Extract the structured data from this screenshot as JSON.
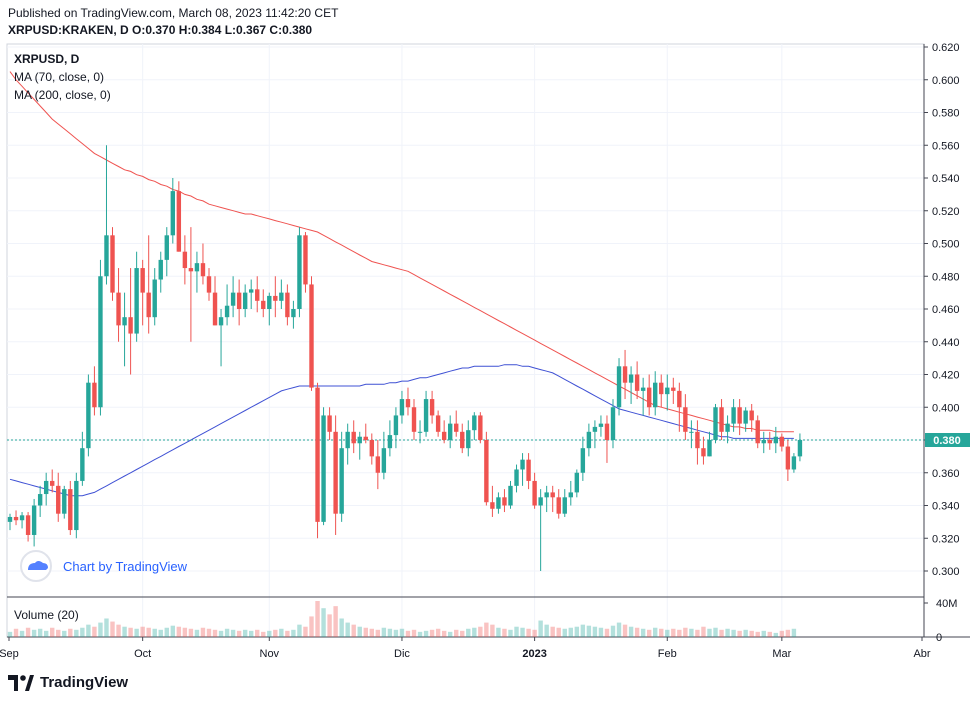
{
  "header": {
    "published": "Published on TradingView.com, March 08, 2023 11:42:20 CET",
    "ohlc": "XRPUSD:KRAKEN, D O:0.370 H:0.384 L:0.367 C:0.380"
  },
  "legend": {
    "symbol": "XRPUSD, D",
    "ma70": "MA (70, close, 0)",
    "ma200": "MA (200, close, 0)"
  },
  "watermark": "Chart by TradingView",
  "volume_label": "Volume (20)",
  "brand": "TradingView",
  "colors": {
    "up": "#26a69a",
    "down": "#ef5350",
    "ma70": "#3f51d4",
    "ma200": "#ef5350",
    "last": "#26a69a"
  },
  "icons": [
    "tradingview-logo-icon",
    "tradingview-cloud-icon"
  ],
  "chart_data": {
    "type": "candlestick",
    "price_axis": {
      "ticks": [
        "0.620",
        "0.600",
        "0.580",
        "0.560",
        "0.540",
        "0.520",
        "0.500",
        "0.480",
        "0.460",
        "0.440",
        "0.420",
        "0.400",
        "0.380",
        "0.360",
        "0.340",
        "0.320",
        "0.300"
      ],
      "range": [
        0.29,
        0.622
      ]
    },
    "volume_axis": {
      "ticks": [
        "40M",
        "0"
      ]
    },
    "time_axis": {
      "labels": [
        "Sep",
        "Oct",
        "Nov",
        "Dic",
        "2023",
        "Feb",
        "Mar",
        "Abr"
      ]
    },
    "last_price": "0.380",
    "candles": [
      [
        0.33,
        0.335,
        0.325,
        0.333
      ],
      [
        0.333,
        0.337,
        0.328,
        0.331
      ],
      [
        0.331,
        0.336,
        0.326,
        0.334
      ],
      [
        0.334,
        0.336,
        0.318,
        0.322
      ],
      [
        0.322,
        0.344,
        0.315,
        0.34
      ],
      [
        0.34,
        0.352,
        0.333,
        0.347
      ],
      [
        0.347,
        0.36,
        0.34,
        0.355
      ],
      [
        0.355,
        0.362,
        0.348,
        0.352
      ],
      [
        0.352,
        0.36,
        0.33,
        0.335
      ],
      [
        0.335,
        0.352,
        0.332,
        0.35
      ],
      [
        0.35,
        0.355,
        0.322,
        0.325
      ],
      [
        0.325,
        0.36,
        0.32,
        0.355
      ],
      [
        0.355,
        0.385,
        0.352,
        0.375
      ],
      [
        0.375,
        0.42,
        0.37,
        0.415
      ],
      [
        0.415,
        0.425,
        0.395,
        0.4
      ],
      [
        0.4,
        0.49,
        0.395,
        0.48
      ],
      [
        0.48,
        0.56,
        0.475,
        0.505
      ],
      [
        0.505,
        0.51,
        0.465,
        0.47
      ],
      [
        0.47,
        0.485,
        0.44,
        0.45
      ],
      [
        0.45,
        0.47,
        0.425,
        0.455
      ],
      [
        0.455,
        0.485,
        0.42,
        0.445
      ],
      [
        0.445,
        0.495,
        0.44,
        0.485
      ],
      [
        0.485,
        0.49,
        0.45,
        0.47
      ],
      [
        0.47,
        0.505,
        0.445,
        0.455
      ],
      [
        0.455,
        0.485,
        0.45,
        0.478
      ],
      [
        0.478,
        0.495,
        0.47,
        0.49
      ],
      [
        0.49,
        0.51,
        0.48,
        0.505
      ],
      [
        0.505,
        0.54,
        0.5,
        0.532
      ],
      [
        0.532,
        0.538,
        0.495,
        0.495
      ],
      [
        0.495,
        0.505,
        0.475,
        0.485
      ],
      [
        0.485,
        0.51,
        0.44,
        0.483
      ],
      [
        0.483,
        0.495,
        0.47,
        0.488
      ],
      [
        0.488,
        0.5,
        0.475,
        0.48
      ],
      [
        0.48,
        0.485,
        0.465,
        0.47
      ],
      [
        0.47,
        0.48,
        0.45,
        0.45
      ],
      [
        0.45,
        0.46,
        0.425,
        0.455
      ],
      [
        0.455,
        0.475,
        0.45,
        0.462
      ],
      [
        0.462,
        0.48,
        0.455,
        0.47
      ],
      [
        0.47,
        0.478,
        0.45,
        0.46
      ],
      [
        0.46,
        0.475,
        0.455,
        0.47
      ],
      [
        0.47,
        0.478,
        0.46,
        0.472
      ],
      [
        0.472,
        0.48,
        0.458,
        0.465
      ],
      [
        0.465,
        0.472,
        0.455,
        0.46
      ],
      [
        0.46,
        0.47,
        0.45,
        0.468
      ],
      [
        0.468,
        0.48,
        0.455,
        0.465
      ],
      [
        0.465,
        0.478,
        0.46,
        0.47
      ],
      [
        0.47,
        0.475,
        0.45,
        0.455
      ],
      [
        0.455,
        0.465,
        0.448,
        0.46
      ],
      [
        0.46,
        0.51,
        0.455,
        0.505
      ],
      [
        0.505,
        0.507,
        0.47,
        0.475
      ],
      [
        0.475,
        0.48,
        0.41,
        0.412
      ],
      [
        0.412,
        0.415,
        0.32,
        0.33
      ],
      [
        0.33,
        0.4,
        0.328,
        0.395
      ],
      [
        0.395,
        0.4,
        0.38,
        0.385
      ],
      [
        0.385,
        0.395,
        0.322,
        0.335
      ],
      [
        0.335,
        0.385,
        0.33,
        0.375
      ],
      [
        0.375,
        0.39,
        0.365,
        0.385
      ],
      [
        0.385,
        0.392,
        0.372,
        0.378
      ],
      [
        0.378,
        0.385,
        0.368,
        0.382
      ],
      [
        0.382,
        0.39,
        0.378,
        0.38
      ],
      [
        0.38,
        0.384,
        0.365,
        0.37
      ],
      [
        0.37,
        0.38,
        0.35,
        0.36
      ],
      [
        0.36,
        0.385,
        0.356,
        0.375
      ],
      [
        0.375,
        0.392,
        0.37,
        0.383
      ],
      [
        0.383,
        0.4,
        0.375,
        0.395
      ],
      [
        0.395,
        0.41,
        0.39,
        0.405
      ],
      [
        0.405,
        0.412,
        0.395,
        0.4
      ],
      [
        0.4,
        0.405,
        0.38,
        0.385
      ],
      [
        0.385,
        0.392,
        0.378,
        0.385
      ],
      [
        0.385,
        0.41,
        0.382,
        0.405
      ],
      [
        0.405,
        0.41,
        0.39,
        0.395
      ],
      [
        0.395,
        0.398,
        0.382,
        0.385
      ],
      [
        0.385,
        0.392,
        0.378,
        0.38
      ],
      [
        0.38,
        0.395,
        0.375,
        0.39
      ],
      [
        0.39,
        0.398,
        0.382,
        0.385
      ],
      [
        0.385,
        0.39,
        0.372,
        0.375
      ],
      [
        0.375,
        0.392,
        0.37,
        0.386
      ],
      [
        0.386,
        0.397,
        0.38,
        0.395
      ],
      [
        0.395,
        0.397,
        0.378,
        0.38
      ],
      [
        0.38,
        0.385,
        0.34,
        0.342
      ],
      [
        0.342,
        0.352,
        0.333,
        0.338
      ],
      [
        0.338,
        0.348,
        0.335,
        0.345
      ],
      [
        0.345,
        0.35,
        0.336,
        0.34
      ],
      [
        0.34,
        0.355,
        0.338,
        0.352
      ],
      [
        0.352,
        0.365,
        0.348,
        0.362
      ],
      [
        0.362,
        0.372,
        0.352,
        0.368
      ],
      [
        0.368,
        0.372,
        0.35,
        0.355
      ],
      [
        0.355,
        0.36,
        0.338,
        0.34
      ],
      [
        0.34,
        0.35,
        0.3,
        0.345
      ],
      [
        0.345,
        0.352,
        0.336,
        0.348
      ],
      [
        0.348,
        0.352,
        0.336,
        0.345
      ],
      [
        0.345,
        0.35,
        0.332,
        0.335
      ],
      [
        0.335,
        0.35,
        0.333,
        0.345
      ],
      [
        0.345,
        0.355,
        0.34,
        0.348
      ],
      [
        0.348,
        0.362,
        0.345,
        0.36
      ],
      [
        0.36,
        0.382,
        0.355,
        0.375
      ],
      [
        0.375,
        0.39,
        0.37,
        0.385
      ],
      [
        0.385,
        0.392,
        0.375,
        0.388
      ],
      [
        0.388,
        0.395,
        0.382,
        0.39
      ],
      [
        0.39,
        0.395,
        0.366,
        0.38
      ],
      [
        0.38,
        0.405,
        0.375,
        0.4
      ],
      [
        0.4,
        0.43,
        0.395,
        0.425
      ],
      [
        0.425,
        0.435,
        0.405,
        0.415
      ],
      [
        0.415,
        0.425,
        0.402,
        0.42
      ],
      [
        0.42,
        0.428,
        0.405,
        0.41
      ],
      [
        0.41,
        0.418,
        0.395,
        0.412
      ],
      [
        0.412,
        0.42,
        0.395,
        0.4
      ],
      [
        0.4,
        0.422,
        0.395,
        0.415
      ],
      [
        0.415,
        0.42,
        0.4,
        0.408
      ],
      [
        0.408,
        0.42,
        0.398,
        0.412
      ],
      [
        0.412,
        0.418,
        0.402,
        0.41
      ],
      [
        0.41,
        0.415,
        0.385,
        0.4
      ],
      [
        0.4,
        0.408,
        0.38,
        0.385
      ],
      [
        0.385,
        0.392,
        0.375,
        0.385
      ],
      [
        0.385,
        0.392,
        0.365,
        0.375
      ],
      [
        0.375,
        0.382,
        0.365,
        0.37
      ],
      [
        0.37,
        0.385,
        0.37,
        0.38
      ],
      [
        0.38,
        0.402,
        0.378,
        0.4
      ],
      [
        0.4,
        0.405,
        0.38,
        0.385
      ],
      [
        0.385,
        0.395,
        0.378,
        0.39
      ],
      [
        0.39,
        0.405,
        0.385,
        0.4
      ],
      [
        0.4,
        0.405,
        0.383,
        0.39
      ],
      [
        0.39,
        0.4,
        0.385,
        0.398
      ],
      [
        0.398,
        0.402,
        0.385,
        0.392
      ],
      [
        0.392,
        0.395,
        0.375,
        0.378
      ],
      [
        0.378,
        0.385,
        0.372,
        0.38
      ],
      [
        0.38,
        0.385,
        0.374,
        0.378
      ],
      [
        0.378,
        0.388,
        0.372,
        0.382
      ],
      [
        0.382,
        0.384,
        0.373,
        0.376
      ],
      [
        0.376,
        0.38,
        0.355,
        0.362
      ],
      [
        0.362,
        0.372,
        0.36,
        0.37
      ],
      [
        0.37,
        0.384,
        0.367,
        0.38
      ]
    ],
    "ma70": [
      0.356,
      0.355,
      0.354,
      0.353,
      0.352,
      0.351,
      0.35,
      0.349,
      0.348,
      0.347,
      0.346,
      0.346,
      0.346,
      0.347,
      0.348,
      0.35,
      0.352,
      0.354,
      0.356,
      0.358,
      0.36,
      0.362,
      0.364,
      0.366,
      0.368,
      0.37,
      0.372,
      0.374,
      0.376,
      0.378,
      0.38,
      0.382,
      0.384,
      0.386,
      0.388,
      0.39,
      0.392,
      0.394,
      0.396,
      0.398,
      0.4,
      0.402,
      0.404,
      0.406,
      0.408,
      0.41,
      0.411,
      0.412,
      0.413,
      0.413,
      0.413,
      0.413,
      0.413,
      0.413,
      0.413,
      0.413,
      0.413,
      0.413,
      0.413,
      0.414,
      0.414,
      0.414,
      0.414,
      0.415,
      0.415,
      0.416,
      0.416,
      0.417,
      0.418,
      0.418,
      0.419,
      0.42,
      0.421,
      0.422,
      0.423,
      0.424,
      0.424,
      0.425,
      0.425,
      0.425,
      0.425,
      0.425,
      0.426,
      0.426,
      0.426,
      0.425,
      0.425,
      0.424,
      0.423,
      0.422,
      0.421,
      0.419,
      0.417,
      0.415,
      0.413,
      0.411,
      0.409,
      0.407,
      0.405,
      0.403,
      0.401,
      0.399,
      0.398,
      0.397,
      0.396,
      0.395,
      0.394,
      0.393,
      0.392,
      0.391,
      0.39,
      0.389,
      0.388,
      0.387,
      0.386,
      0.385,
      0.384,
      0.383,
      0.382,
      0.382,
      0.381,
      0.381,
      0.381,
      0.381,
      0.381,
      0.381,
      0.381,
      0.381,
      0.381,
      0.381,
      0.381
    ],
    "ma200": [
      0.605,
      0.6,
      0.596,
      0.592,
      0.588,
      0.584,
      0.58,
      0.576,
      0.573,
      0.57,
      0.567,
      0.564,
      0.561,
      0.558,
      0.555,
      0.553,
      0.551,
      0.549,
      0.547,
      0.545,
      0.544,
      0.542,
      0.541,
      0.539,
      0.538,
      0.536,
      0.535,
      0.533,
      0.532,
      0.53,
      0.529,
      0.527,
      0.526,
      0.524,
      0.523,
      0.522,
      0.521,
      0.52,
      0.519,
      0.518,
      0.518,
      0.517,
      0.516,
      0.515,
      0.514,
      0.513,
      0.512,
      0.511,
      0.51,
      0.509,
      0.508,
      0.507,
      0.505,
      0.503,
      0.501,
      0.499,
      0.497,
      0.495,
      0.493,
      0.491,
      0.489,
      0.488,
      0.487,
      0.486,
      0.485,
      0.484,
      0.483,
      0.481,
      0.479,
      0.477,
      0.475,
      0.473,
      0.471,
      0.469,
      0.467,
      0.465,
      0.463,
      0.461,
      0.459,
      0.457,
      0.455,
      0.453,
      0.451,
      0.449,
      0.447,
      0.445,
      0.443,
      0.441,
      0.439,
      0.437,
      0.435,
      0.433,
      0.431,
      0.429,
      0.427,
      0.425,
      0.423,
      0.421,
      0.419,
      0.417,
      0.415,
      0.413,
      0.411,
      0.409,
      0.407,
      0.405,
      0.403,
      0.401,
      0.4,
      0.399,
      0.398,
      0.397,
      0.396,
      0.395,
      0.394,
      0.393,
      0.392,
      0.391,
      0.39,
      0.389,
      0.388,
      0.388,
      0.387,
      0.387,
      0.386,
      0.386,
      0.386,
      0.385,
      0.385,
      0.385,
      0.385
    ],
    "volume": [
      5,
      8,
      6,
      9,
      7,
      8,
      6,
      9,
      7,
      6,
      8,
      7,
      9,
      12,
      10,
      14,
      18,
      15,
      12,
      10,
      9,
      8,
      10,
      9,
      8,
      7,
      9,
      11,
      10,
      9,
      8,
      7,
      9,
      8,
      7,
      6,
      8,
      7,
      6,
      7,
      6,
      7,
      5,
      6,
      7,
      8,
      6,
      7,
      12,
      10,
      20,
      35,
      28,
      22,
      30,
      18,
      14,
      12,
      10,
      9,
      8,
      7,
      9,
      8,
      7,
      8,
      6,
      7,
      5,
      6,
      7,
      8,
      6,
      5,
      7,
      6,
      8,
      9,
      10,
      14,
      12,
      9,
      8,
      7,
      10,
      9,
      8,
      7,
      16,
      12,
      10,
      9,
      8,
      9,
      10,
      12,
      11,
      10,
      9,
      8,
      11,
      14,
      12,
      10,
      9,
      8,
      7,
      9,
      8,
      7,
      8,
      7,
      9,
      8,
      7,
      10,
      8,
      9,
      7,
      8,
      7,
      6,
      7,
      6,
      5,
      6,
      5,
      4,
      6,
      7,
      8
    ]
  }
}
